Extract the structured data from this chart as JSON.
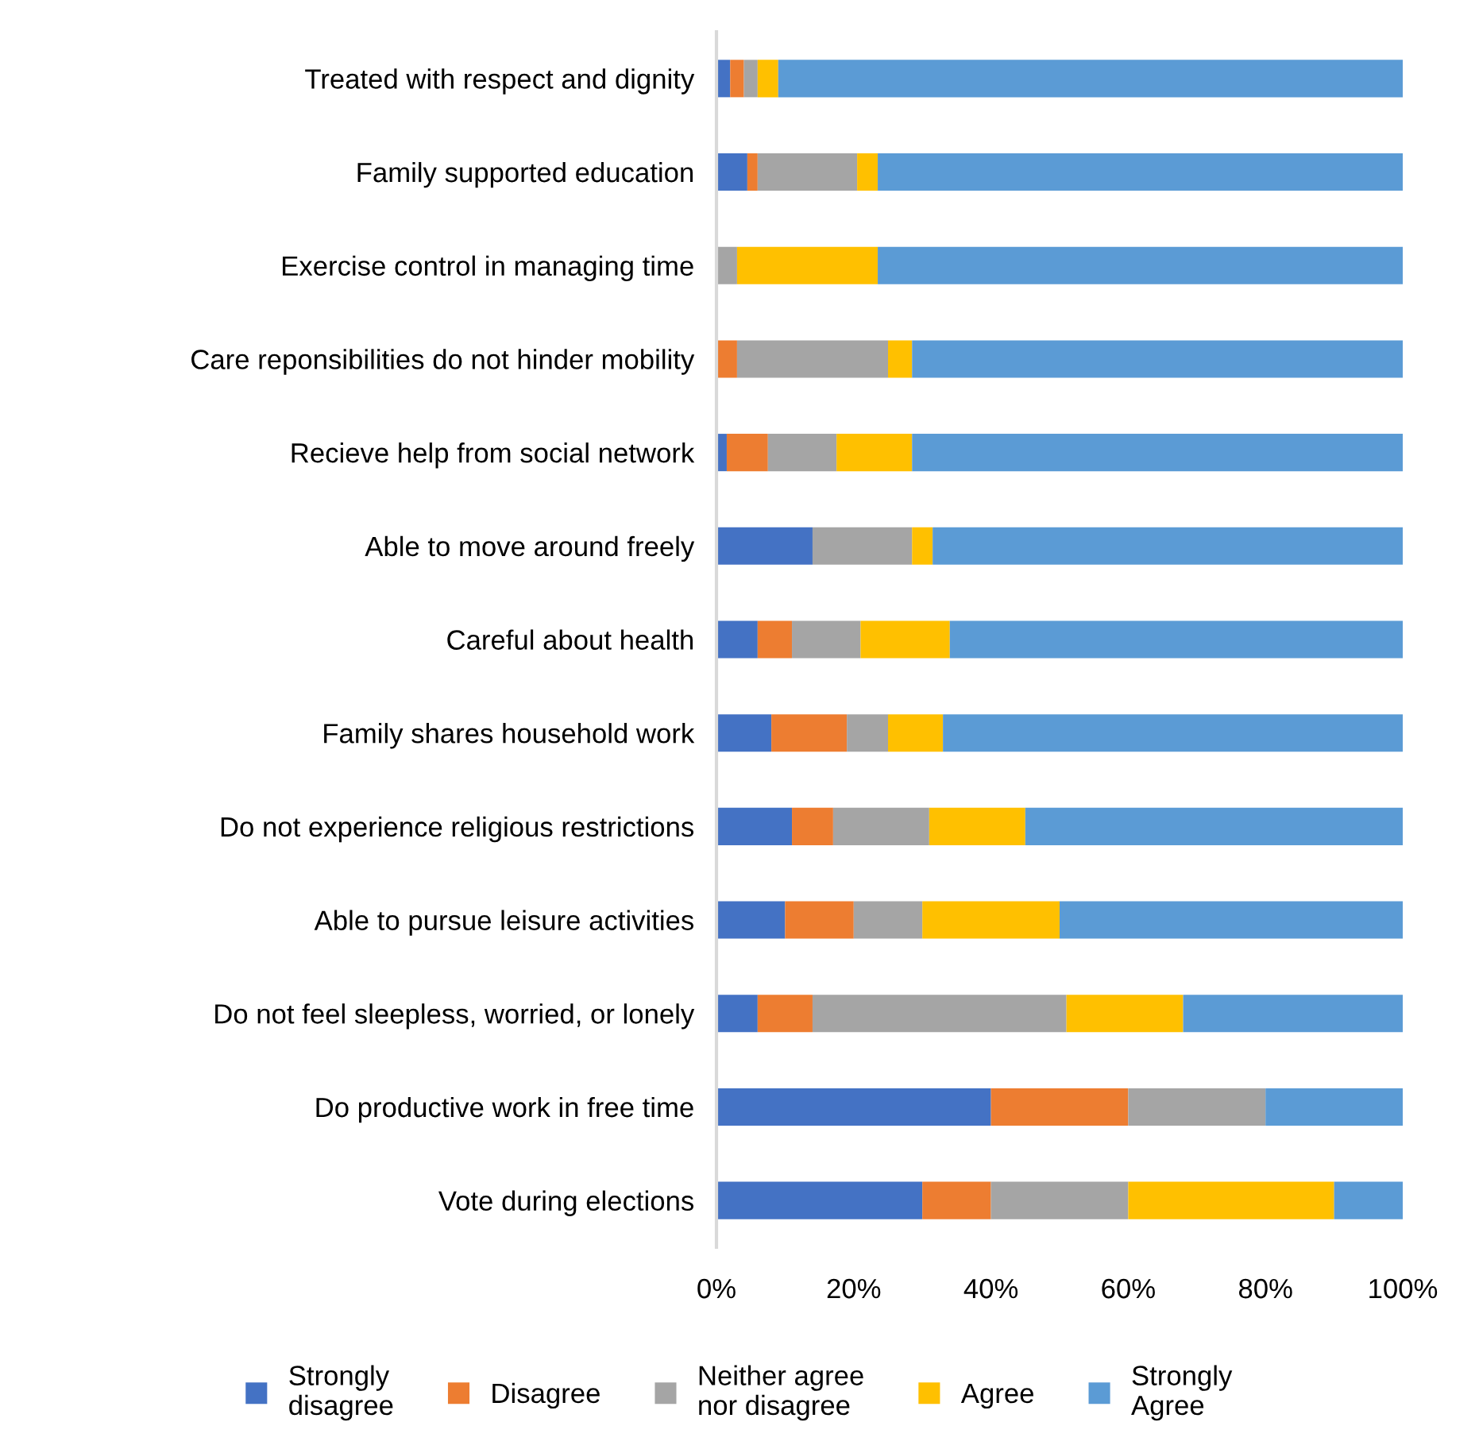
{
  "chart_data": {
    "type": "bar",
    "orientation": "horizontal",
    "stacked": true,
    "categories": [
      "Treated with respect and dignity",
      "Family supported education",
      "Exercise control in managing time",
      "Care reponsibilities do not hinder mobility",
      "Recieve help from social network",
      "Able to move around freely",
      "Careful about health",
      "Family shares household work",
      "Do not experience religious restrictions",
      "Able to pursue leisure activities",
      "Do not feel sleepless, worried, or lonely",
      "Do productive work in free time",
      "Vote during elections"
    ],
    "series": [
      {
        "name": "Strongly\ndisagree",
        "color": "#4472c4",
        "values": [
          2,
          4.5,
          0,
          0,
          1.5,
          14,
          6,
          8,
          11,
          10,
          6,
          40,
          30
        ]
      },
      {
        "name": "Disagree",
        "color": "#ed7d31",
        "values": [
          2,
          1.5,
          0,
          3,
          6,
          0,
          5,
          11,
          6,
          10,
          8,
          20,
          10
        ]
      },
      {
        "name": "Neither agree\nnor disagree",
        "color": "#a5a5a5",
        "values": [
          2,
          14.5,
          3,
          22,
          10,
          14.5,
          10,
          6,
          14,
          10,
          37,
          20,
          20
        ]
      },
      {
        "name": "Agree",
        "color": "#ffc000",
        "values": [
          3,
          3,
          20.5,
          3.5,
          11,
          3,
          13,
          8,
          14,
          20,
          17,
          0,
          30
        ]
      },
      {
        "name": "Strongly\nAgree",
        "color": "#5b9bd5",
        "values": [
          91,
          76.5,
          76.5,
          71.5,
          71.5,
          68.5,
          66,
          67,
          55,
          50,
          32,
          20,
          10
        ]
      }
    ],
    "xlim": [
      0,
      100
    ],
    "xticks": [
      {
        "value": 0,
        "label": "0%"
      },
      {
        "value": 20,
        "label": "20%"
      },
      {
        "value": 40,
        "label": "40%"
      },
      {
        "value": 60,
        "label": "60%"
      },
      {
        "value": 80,
        "label": "80%"
      },
      {
        "value": 100,
        "label": "100%"
      }
    ],
    "grid": false,
    "legend": "bottom"
  }
}
